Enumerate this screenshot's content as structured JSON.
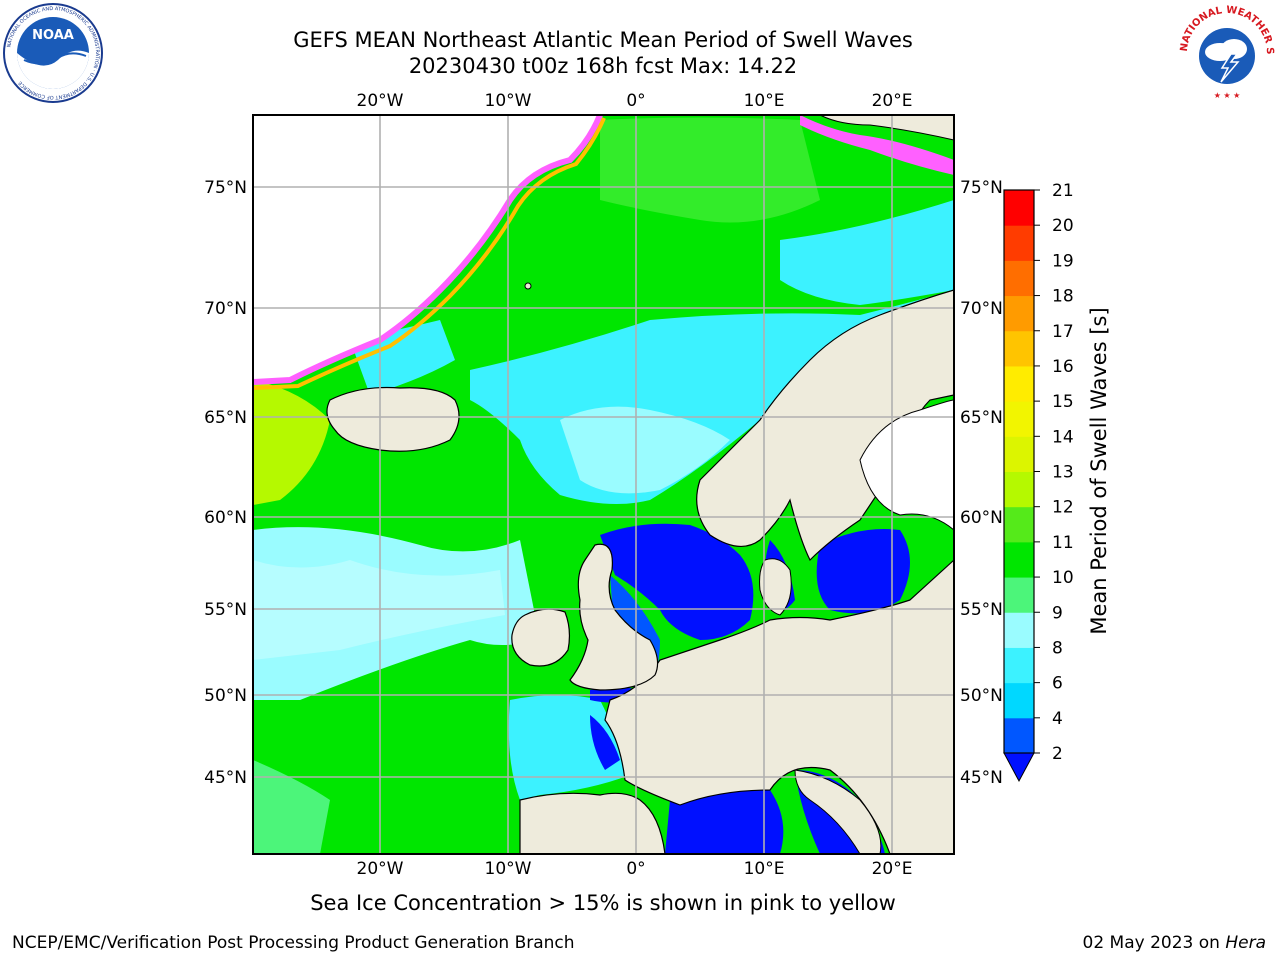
{
  "header": {
    "title_line1": "GEFS MEAN Northeast Atlantic Mean Period of Swell Waves",
    "title_line2": "20230430 t00z 168h fcst   Max: 14.22"
  },
  "logos": {
    "left": {
      "name": "NOAA",
      "ring_text": "NATIONAL OCEANIC AND ATMOSPHERIC ADMINISTRATION · U.S. DEPARTMENT OF COMMERCE"
    },
    "right": {
      "name": "NATIONAL WEATHER SERVICE"
    }
  },
  "map": {
    "lon_ticks_top": [
      "20°W",
      "10°W",
      "0°",
      "10°E",
      "20°E"
    ],
    "lon_ticks_bottom": [
      "20°W",
      "10°W",
      "0°",
      "10°E",
      "20°E"
    ],
    "lat_ticks_left": [
      "75°N",
      "70°N",
      "65°N",
      "60°N",
      "55°N",
      "50°N",
      "45°N"
    ],
    "lat_ticks_right": [
      "75°N",
      "70°N",
      "65°N",
      "60°N",
      "55°N",
      "50°N",
      "45°N"
    ]
  },
  "colorbar": {
    "label": "Mean Period of Swell Waves [s]",
    "ticks": [
      "2",
      "4",
      "6",
      "8",
      "9",
      "10",
      "11",
      "12",
      "13",
      "14",
      "15",
      "16",
      "17",
      "18",
      "19",
      "20",
      "21"
    ],
    "colors": [
      "#0057ff",
      "#00d8ff",
      "#3cf2ff",
      "#9afcff",
      "#4cf57a",
      "#00e600",
      "#55ea1a",
      "#b5f900",
      "#dcf500",
      "#f2f500",
      "#ffec00",
      "#ffc400",
      "#ff9b00",
      "#ff6e00",
      "#ff3c00",
      "#ff0000"
    ],
    "under_color": "#0010ff"
  },
  "notes": {
    "ice": "Sea Ice Concentration > 15% is shown in pink to yellow"
  },
  "footer": {
    "left": "NCEP/EMC/Verification Post Processing Product Generation Branch",
    "right_date": "02 May 2023 on ",
    "right_host": "Hera"
  }
}
